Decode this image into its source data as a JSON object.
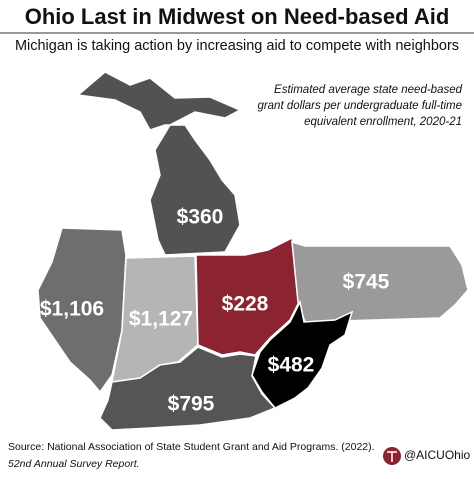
{
  "header": {
    "title": "Ohio Last in Midwest on Need-based Aid",
    "subtitle": "Michigan is taking action by increasing aid to compete with neighbors"
  },
  "note": [
    "Estimated average state need-based",
    "grant dollars per undergraduate full-time",
    "equivalent enrollment, 2020-21"
  ],
  "regions": [
    {
      "label": "$360",
      "color": "#525252"
    },
    {
      "label": "$1,106",
      "color": "#6e6e6e"
    },
    {
      "label": "$1,127",
      "color": "#b5b5b5"
    },
    {
      "label": "$228",
      "color": "#8c2330"
    },
    {
      "label": "$745",
      "color": "#9a9a9a"
    },
    {
      "label": "$482",
      "color": "#000000"
    },
    {
      "label": "$795",
      "color": "#555555"
    }
  ],
  "source": [
    "Source: National Association of State Student Grant and Aid Programs. (2022).",
    "52nd Annual Survey Report."
  ],
  "handle": "@AICUOhio"
}
